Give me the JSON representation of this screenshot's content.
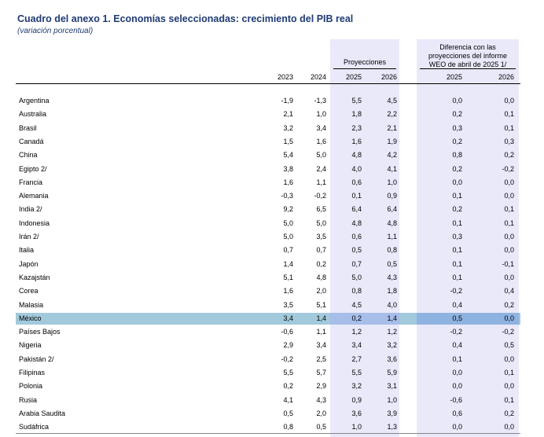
{
  "title": "Cuadro del anexo 1. Economías seleccionadas: crecimiento del PIB real",
  "subtitle": "(variación porcentual)",
  "headers": {
    "projections": "Proyecciones",
    "difference_line1": "Diferencia con las",
    "difference_line2": "proyecciones del informe",
    "difference_line3": "WEO de abril de 2025 1/",
    "years": [
      "2023",
      "2024",
      "2025",
      "2026",
      "2025",
      "2026"
    ]
  },
  "rows": [
    {
      "name": "Argentina",
      "v": [
        "-1,9",
        "-1,3",
        "5,5",
        "4,5",
        "0,0",
        "0,0"
      ]
    },
    {
      "name": "Australia",
      "v": [
        "2,1",
        "1,0",
        "1,8",
        "2,2",
        "0,2",
        "0,1"
      ]
    },
    {
      "name": "Brasil",
      "v": [
        "3,2",
        "3,4",
        "2,3",
        "2,1",
        "0,3",
        "0,1"
      ]
    },
    {
      "name": "Canadá",
      "v": [
        "1,5",
        "1,6",
        "1,6",
        "1,9",
        "0,2",
        "0,3"
      ]
    },
    {
      "name": "China",
      "v": [
        "5,4",
        "5,0",
        "4,8",
        "4,2",
        "0,8",
        "0,2"
      ]
    },
    {
      "name": "Egipto 2/",
      "v": [
        "3,8",
        "2,4",
        "4,0",
        "4,1",
        "0,2",
        "-0,2"
      ]
    },
    {
      "name": "Francia",
      "v": [
        "1,6",
        "1,1",
        "0,6",
        "1,0",
        "0,0",
        "0,0"
      ]
    },
    {
      "name": "Alemania",
      "v": [
        "-0,3",
        "-0,2",
        "0,1",
        "0,9",
        "0,1",
        "0,0"
      ]
    },
    {
      "name": "India 2/",
      "v": [
        "9,2",
        "6,5",
        "6,4",
        "6,4",
        "0,2",
        "0,1"
      ]
    },
    {
      "name": "Indonesia",
      "v": [
        "5,0",
        "5,0",
        "4,8",
        "4,8",
        "0,1",
        "0,1"
      ]
    },
    {
      "name": "Irán 2/",
      "v": [
        "5,0",
        "3,5",
        "0,6",
        "1,1",
        "0,3",
        "0,0"
      ]
    },
    {
      "name": "Italia",
      "v": [
        "0,7",
        "0,7",
        "0,5",
        "0,8",
        "0,1",
        "0,0"
      ]
    },
    {
      "name": "Japón",
      "v": [
        "1,4",
        "0,2",
        "0,7",
        "0,5",
        "0,1",
        "-0,1"
      ]
    },
    {
      "name": "Kazajstán",
      "v": [
        "5,1",
        "4,8",
        "5,0",
        "4,3",
        "0,1",
        "0,0"
      ]
    },
    {
      "name": "Corea",
      "v": [
        "1,6",
        "2,0",
        "0,8",
        "1,8",
        "-0,2",
        "0,4"
      ]
    },
    {
      "name": "Malasia",
      "v": [
        "3,5",
        "5,1",
        "4,5",
        "4,0",
        "0,4",
        "0,2"
      ]
    },
    {
      "name": "México",
      "v": [
        "3,4",
        "1,4",
        "0,2",
        "1,4",
        "0,5",
        "0,0"
      ]
    },
    {
      "name": "Países Bajos",
      "v": [
        "-0,6",
        "1,1",
        "1,2",
        "1,2",
        "-0,2",
        "-0,2"
      ]
    },
    {
      "name": "Nigeria",
      "v": [
        "2,9",
        "3,4",
        "3,4",
        "3,2",
        "0,4",
        "0,5"
      ]
    },
    {
      "name": "Pakistán 2/",
      "v": [
        "-0,2",
        "2,5",
        "2,7",
        "3,6",
        "0,1",
        "0,0"
      ]
    },
    {
      "name": "Filipinas",
      "v": [
        "5,5",
        "5,7",
        "5,5",
        "5,9",
        "0,0",
        "0,1"
      ]
    },
    {
      "name": "Polonia",
      "v": [
        "0,2",
        "2,9",
        "3,2",
        "3,1",
        "0,0",
        "0,0"
      ]
    },
    {
      "name": "Rusia",
      "v": [
        "4,1",
        "4,3",
        "0,9",
        "1,0",
        "-0,6",
        "0,1"
      ]
    },
    {
      "name": "Arabia Saudita",
      "v": [
        "0,5",
        "2,0",
        "3,6",
        "3,9",
        "0,6",
        "0,2"
      ]
    },
    {
      "name": "Sudáfrica",
      "v": [
        "0,8",
        "0,5",
        "1,0",
        "1,3",
        "0,0",
        "0,0"
      ]
    }
  ],
  "colors": {
    "title": "#1f3b73",
    "column_shade": "#e9e9fa",
    "highlight_row": "#a3c9dc"
  }
}
